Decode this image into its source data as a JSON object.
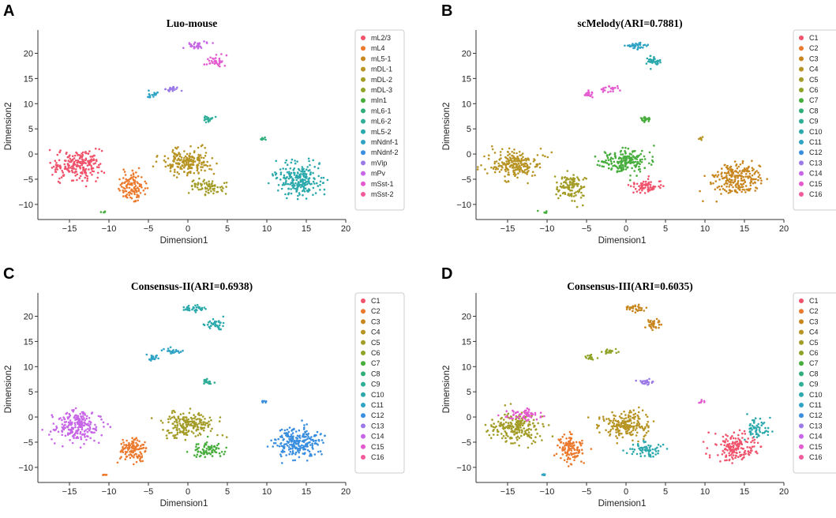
{
  "chart_data": [
    {
      "letter": "A",
      "type": "scatter",
      "title": "Luo-mouse",
      "xlabel": "Dimension1",
      "ylabel": "Dimension2",
      "xlim": [
        -19,
        20
      ],
      "ylim": [
        -13,
        24
      ],
      "xticks": [
        -15,
        -10,
        -5,
        0,
        5,
        10,
        15,
        20
      ],
      "yticks": [
        -10,
        -5,
        0,
        5,
        10,
        15,
        20
      ],
      "legend_position": "right",
      "legend": [
        {
          "label": "mL2/3",
          "color": "#f0536b"
        },
        {
          "label": "mL4",
          "color": "#ec7a2e"
        },
        {
          "label": "mL5-1",
          "color": "#c8861f"
        },
        {
          "label": "mDL-1",
          "color": "#b79423"
        },
        {
          "label": "mDL-2",
          "color": "#a39c27"
        },
        {
          "label": "mDL-3",
          "color": "#8fa328"
        },
        {
          "label": "mIn1",
          "color": "#47ad3c"
        },
        {
          "label": "mL6-1",
          "color": "#2fae7a"
        },
        {
          "label": "mL6-2",
          "color": "#2fae98"
        },
        {
          "label": "mL5-2",
          "color": "#2ba9ac"
        },
        {
          "label": "mNdnf-1",
          "color": "#2ea3c4"
        },
        {
          "label": "mNdnf-2",
          "color": "#3a8ee0"
        },
        {
          "label": "mVip",
          "color": "#9b7ae8"
        },
        {
          "label": "mPv",
          "color": "#c766e6"
        },
        {
          "label": "mSst-1",
          "color": "#e45bd0"
        },
        {
          "label": "mSst-2",
          "color": "#f25b9c"
        }
      ],
      "clusters": [
        {
          "name": "upper-left-blob",
          "cx": -14,
          "cy": -2,
          "sx": 2.6,
          "sy": 2.4,
          "n": 220,
          "color": "#f0536b"
        },
        {
          "name": "mid-left-stripe",
          "cx": -7,
          "cy": -6.5,
          "sx": 1.4,
          "sy": 2.2,
          "n": 120,
          "color": "#ec7a2e"
        },
        {
          "name": "centre-arc",
          "cx": 0,
          "cy": -1.5,
          "sx": 2.6,
          "sy": 2.0,
          "n": 200,
          "color": "#b79423"
        },
        {
          "name": "centre-lower",
          "cx": 2.5,
          "cy": -6.5,
          "sx": 1.8,
          "sy": 1.2,
          "n": 70,
          "color": "#a39c27"
        },
        {
          "name": "right-big",
          "cx": 14,
          "cy": -5,
          "sx": 2.5,
          "sy": 2.6,
          "n": 230,
          "color": "#2ba9ac"
        },
        {
          "name": "top-a",
          "cx": 1,
          "cy": 21.5,
          "sx": 1.2,
          "sy": 0.6,
          "n": 35,
          "color": "#c766e6"
        },
        {
          "name": "top-b",
          "cx": 3.5,
          "cy": 18.5,
          "sx": 1.0,
          "sy": 0.9,
          "n": 35,
          "color": "#e45bd0"
        },
        {
          "name": "mid-upper-a",
          "cx": -4.5,
          "cy": 11.8,
          "sx": 0.6,
          "sy": 0.6,
          "n": 18,
          "color": "#2ea3c4"
        },
        {
          "name": "mid-upper-b",
          "cx": -2,
          "cy": 13,
          "sx": 1.0,
          "sy": 0.5,
          "n": 22,
          "color": "#9b7ae8"
        },
        {
          "name": "mid-small",
          "cx": 2.5,
          "cy": 7,
          "sx": 0.6,
          "sy": 0.5,
          "n": 22,
          "color": "#2fae98"
        },
        {
          "name": "small-right",
          "cx": 9.5,
          "cy": 3,
          "sx": 0.3,
          "sy": 0.4,
          "n": 7,
          "color": "#2fae7a"
        },
        {
          "name": "small-left",
          "cx": -10.5,
          "cy": -11.5,
          "sx": 0.4,
          "sy": 0.2,
          "n": 6,
          "color": "#47ad3c"
        }
      ]
    },
    {
      "letter": "B",
      "type": "scatter",
      "title": "scMelody(ARI=0.7881)",
      "xlabel": "Dimension1",
      "ylabel": "Dimension2",
      "xlim": [
        -19,
        20
      ],
      "ylim": [
        -13,
        24
      ],
      "xticks": [
        -15,
        -10,
        -5,
        0,
        5,
        10,
        15,
        20
      ],
      "yticks": [
        -10,
        -5,
        0,
        5,
        10,
        15,
        20
      ],
      "legend_position": "right",
      "legend": [
        {
          "label": "C1",
          "color": "#f0536b"
        },
        {
          "label": "C2",
          "color": "#ec7a2e"
        },
        {
          "label": "C3",
          "color": "#c8861f"
        },
        {
          "label": "C4",
          "color": "#b79423"
        },
        {
          "label": "C5",
          "color": "#a39c27"
        },
        {
          "label": "C6",
          "color": "#8fa328"
        },
        {
          "label": "C7",
          "color": "#47ad3c"
        },
        {
          "label": "C8",
          "color": "#2fae7a"
        },
        {
          "label": "C9",
          "color": "#2fae98"
        },
        {
          "label": "C10",
          "color": "#2ba9ac"
        },
        {
          "label": "C11",
          "color": "#2ea3c4"
        },
        {
          "label": "C12",
          "color": "#3a8ee0"
        },
        {
          "label": "C13",
          "color": "#9b7ae8"
        },
        {
          "label": "C14",
          "color": "#c766e6"
        },
        {
          "label": "C15",
          "color": "#e45bd0"
        },
        {
          "label": "C16",
          "color": "#f25b9c"
        }
      ],
      "clusters": [
        {
          "name": "upper-left-blob",
          "cx": -14,
          "cy": -2,
          "sx": 2.6,
          "sy": 2.4,
          "n": 220,
          "color": "#b79423"
        },
        {
          "name": "mid-left-stripe",
          "cx": -7,
          "cy": -6.5,
          "sx": 1.4,
          "sy": 2.2,
          "n": 120,
          "color": "#a39c27"
        },
        {
          "name": "centre-arc",
          "cx": 0,
          "cy": -1.5,
          "sx": 2.6,
          "sy": 2.0,
          "n": 200,
          "color": "#47ad3c"
        },
        {
          "name": "centre-lower",
          "cx": 2.5,
          "cy": -6.5,
          "sx": 1.8,
          "sy": 1.2,
          "n": 70,
          "color": "#f0536b"
        },
        {
          "name": "right-big",
          "cx": 14,
          "cy": -5,
          "sx": 2.5,
          "sy": 2.6,
          "n": 230,
          "color": "#c8861f"
        },
        {
          "name": "top-a",
          "cx": 1,
          "cy": 21.5,
          "sx": 1.2,
          "sy": 0.6,
          "n": 35,
          "color": "#2ea3c4"
        },
        {
          "name": "top-b",
          "cx": 3.5,
          "cy": 18.5,
          "sx": 1.0,
          "sy": 0.9,
          "n": 35,
          "color": "#2ba9ac"
        },
        {
          "name": "mid-upper-a",
          "cx": -4.5,
          "cy": 11.8,
          "sx": 0.6,
          "sy": 0.6,
          "n": 18,
          "color": "#e45bd0"
        },
        {
          "name": "mid-upper-b",
          "cx": -2,
          "cy": 13,
          "sx": 1.0,
          "sy": 0.5,
          "n": 22,
          "color": "#e45bd0"
        },
        {
          "name": "mid-small",
          "cx": 2.5,
          "cy": 7,
          "sx": 0.6,
          "sy": 0.5,
          "n": 22,
          "color": "#47ad3c"
        },
        {
          "name": "small-right",
          "cx": 9.5,
          "cy": 3,
          "sx": 0.3,
          "sy": 0.4,
          "n": 7,
          "color": "#b79423"
        },
        {
          "name": "small-left",
          "cx": -10.5,
          "cy": -11.5,
          "sx": 0.4,
          "sy": 0.2,
          "n": 6,
          "color": "#47ad3c"
        }
      ]
    },
    {
      "letter": "C",
      "type": "scatter",
      "title": "Consensus-II(ARI=0.6938)",
      "xlabel": "Dimension1",
      "ylabel": "Dimension2",
      "xlim": [
        -19,
        20
      ],
      "ylim": [
        -13,
        24
      ],
      "xticks": [
        -15,
        -10,
        -5,
        0,
        5,
        10,
        15,
        20
      ],
      "yticks": [
        -10,
        -5,
        0,
        5,
        10,
        15,
        20
      ],
      "legend_position": "right",
      "legend": [
        {
          "label": "C1",
          "color": "#f0536b"
        },
        {
          "label": "C2",
          "color": "#ec7a2e"
        },
        {
          "label": "C3",
          "color": "#c8861f"
        },
        {
          "label": "C4",
          "color": "#b79423"
        },
        {
          "label": "C5",
          "color": "#a39c27"
        },
        {
          "label": "C6",
          "color": "#8fa328"
        },
        {
          "label": "C7",
          "color": "#47ad3c"
        },
        {
          "label": "C8",
          "color": "#2fae7a"
        },
        {
          "label": "C9",
          "color": "#2fae98"
        },
        {
          "label": "C10",
          "color": "#2ba9ac"
        },
        {
          "label": "C11",
          "color": "#2ea3c4"
        },
        {
          "label": "C12",
          "color": "#3a8ee0"
        },
        {
          "label": "C13",
          "color": "#9b7ae8"
        },
        {
          "label": "C14",
          "color": "#c766e6"
        },
        {
          "label": "C15",
          "color": "#e45bd0"
        },
        {
          "label": "C16",
          "color": "#f25b9c"
        }
      ],
      "clusters": [
        {
          "name": "upper-left-blob",
          "cx": -14,
          "cy": -2,
          "sx": 2.6,
          "sy": 2.4,
          "n": 220,
          "color": "#c766e6"
        },
        {
          "name": "mid-left-stripe",
          "cx": -7,
          "cy": -6.5,
          "sx": 1.4,
          "sy": 2.2,
          "n": 120,
          "color": "#ec7a2e"
        },
        {
          "name": "centre-arc",
          "cx": 0,
          "cy": -1.5,
          "sx": 2.6,
          "sy": 2.0,
          "n": 200,
          "color": "#a39c27"
        },
        {
          "name": "centre-lower",
          "cx": 2.5,
          "cy": -6.5,
          "sx": 1.8,
          "sy": 1.2,
          "n": 70,
          "color": "#47ad3c"
        },
        {
          "name": "right-big",
          "cx": 14,
          "cy": -5,
          "sx": 2.5,
          "sy": 2.6,
          "n": 230,
          "color": "#3a8ee0"
        },
        {
          "name": "top-a",
          "cx": 1,
          "cy": 21.5,
          "sx": 1.2,
          "sy": 0.6,
          "n": 35,
          "color": "#2ba9ac"
        },
        {
          "name": "top-b",
          "cx": 3.5,
          "cy": 18.5,
          "sx": 1.0,
          "sy": 0.9,
          "n": 35,
          "color": "#2ba9ac"
        },
        {
          "name": "mid-upper-a",
          "cx": -4.5,
          "cy": 11.8,
          "sx": 0.6,
          "sy": 0.6,
          "n": 18,
          "color": "#2ea3c4"
        },
        {
          "name": "mid-upper-b",
          "cx": -2,
          "cy": 13,
          "sx": 1.0,
          "sy": 0.5,
          "n": 22,
          "color": "#2ea3c4"
        },
        {
          "name": "mid-small",
          "cx": 2.5,
          "cy": 7,
          "sx": 0.6,
          "sy": 0.5,
          "n": 22,
          "color": "#2fae98"
        },
        {
          "name": "small-right",
          "cx": 9.5,
          "cy": 3,
          "sx": 0.3,
          "sy": 0.4,
          "n": 7,
          "color": "#3a8ee0"
        },
        {
          "name": "small-left",
          "cx": -10.5,
          "cy": -11.5,
          "sx": 0.4,
          "sy": 0.2,
          "n": 6,
          "color": "#ec7a2e"
        }
      ]
    },
    {
      "letter": "D",
      "type": "scatter",
      "title": "Consensus-III(ARI=0.6035)",
      "xlabel": "Dimension1",
      "ylabel": "Dimension2",
      "xlim": [
        -19,
        20
      ],
      "ylim": [
        -13,
        24
      ],
      "xticks": [
        -15,
        -10,
        -5,
        0,
        5,
        10,
        15,
        20
      ],
      "yticks": [
        -10,
        -5,
        0,
        5,
        10,
        15,
        20
      ],
      "legend_position": "right",
      "legend": [
        {
          "label": "C1",
          "color": "#f0536b"
        },
        {
          "label": "C2",
          "color": "#ec7a2e"
        },
        {
          "label": "C3",
          "color": "#c8861f"
        },
        {
          "label": "C4",
          "color": "#b79423"
        },
        {
          "label": "C5",
          "color": "#a39c27"
        },
        {
          "label": "C6",
          "color": "#8fa328"
        },
        {
          "label": "C7",
          "color": "#47ad3c"
        },
        {
          "label": "C8",
          "color": "#2fae7a"
        },
        {
          "label": "C9",
          "color": "#2fae98"
        },
        {
          "label": "C10",
          "color": "#2ba9ac"
        },
        {
          "label": "C11",
          "color": "#2ea3c4"
        },
        {
          "label": "C12",
          "color": "#3a8ee0"
        },
        {
          "label": "C13",
          "color": "#9b7ae8"
        },
        {
          "label": "C14",
          "color": "#c766e6"
        },
        {
          "label": "C15",
          "color": "#e45bd0"
        },
        {
          "label": "C16",
          "color": "#f25b9c"
        }
      ],
      "clusters": [
        {
          "name": "upper-left-blob",
          "cx": -14,
          "cy": -2,
          "sx": 2.6,
          "sy": 2.4,
          "n": 220,
          "color": "#a39c27"
        },
        {
          "name": "upper-left-top",
          "cx": -13,
          "cy": 0.5,
          "sx": 1.8,
          "sy": 1.0,
          "n": 60,
          "color": "#e45bd0"
        },
        {
          "name": "mid-left-stripe",
          "cx": -7,
          "cy": -6.5,
          "sx": 1.4,
          "sy": 2.2,
          "n": 120,
          "color": "#ec7a2e"
        },
        {
          "name": "centre-arc",
          "cx": 0,
          "cy": -1.5,
          "sx": 2.6,
          "sy": 2.0,
          "n": 200,
          "color": "#b79423"
        },
        {
          "name": "centre-lower",
          "cx": 2.5,
          "cy": -6.5,
          "sx": 1.8,
          "sy": 1.2,
          "n": 70,
          "color": "#2ba9ac"
        },
        {
          "name": "right-big",
          "cx": 14,
          "cy": -6,
          "sx": 2.3,
          "sy": 2.2,
          "n": 170,
          "color": "#f0536b"
        },
        {
          "name": "right-top",
          "cx": 16.5,
          "cy": -2,
          "sx": 1.2,
          "sy": 1.5,
          "n": 60,
          "color": "#2ba9ac"
        },
        {
          "name": "top-a",
          "cx": 1,
          "cy": 21.5,
          "sx": 1.2,
          "sy": 0.6,
          "n": 35,
          "color": "#c8861f"
        },
        {
          "name": "top-b",
          "cx": 3.5,
          "cy": 18.5,
          "sx": 1.0,
          "sy": 0.9,
          "n": 35,
          "color": "#c8861f"
        },
        {
          "name": "mid-upper-a",
          "cx": -4.5,
          "cy": 11.8,
          "sx": 0.6,
          "sy": 0.6,
          "n": 18,
          "color": "#8fa328"
        },
        {
          "name": "mid-upper-b",
          "cx": -2,
          "cy": 13,
          "sx": 1.0,
          "sy": 0.5,
          "n": 22,
          "color": "#8fa328"
        },
        {
          "name": "mid-small",
          "cx": 2.5,
          "cy": 7,
          "sx": 0.6,
          "sy": 0.5,
          "n": 22,
          "color": "#9b7ae8"
        },
        {
          "name": "small-right",
          "cx": 9.5,
          "cy": 3,
          "sx": 0.3,
          "sy": 0.4,
          "n": 7,
          "color": "#e45bd0"
        },
        {
          "name": "small-left",
          "cx": -10.5,
          "cy": -11.5,
          "sx": 0.4,
          "sy": 0.2,
          "n": 6,
          "color": "#2ea3c4"
        }
      ]
    }
  ]
}
